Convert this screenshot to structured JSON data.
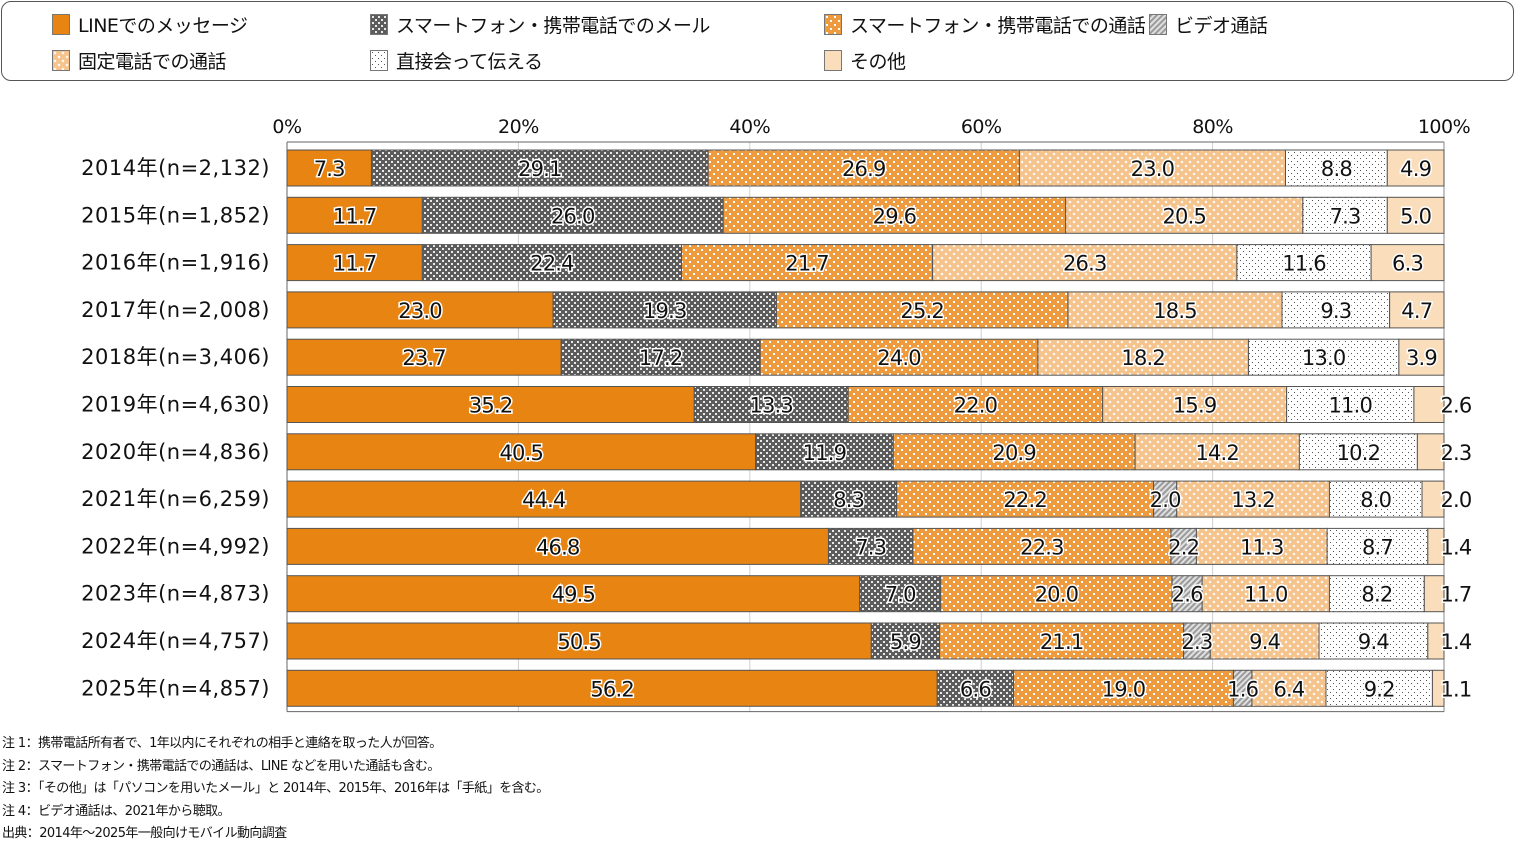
{
  "chart_data": {
    "type": "bar",
    "orientation": "horizontal",
    "stacked": true,
    "title": "",
    "xlabel": "",
    "ylabel": "",
    "xlim": [
      0,
      100
    ],
    "x_ticks": [
      "0%",
      "20%",
      "40%",
      "60%",
      "80%",
      "100%"
    ],
    "grid": true,
    "legend_position": "top",
    "categories": [
      "2014年(n=2,132)",
      "2015年(n=1,852)",
      "2016年(n=1,916)",
      "2017年(n=2,008)",
      "2018年(n=3,406)",
      "2019年(n=4,630)",
      "2020年(n=4,836)",
      "2021年(n=6,259)",
      "2022年(n=4,992)",
      "2023年(n=4,873)",
      "2024年(n=4,757)",
      "2025年(n=4,857)"
    ],
    "series": [
      {
        "name": "LINEでのメッセージ",
        "color": "#E88411",
        "pattern": "solid",
        "values": [
          7.3,
          11.7,
          11.7,
          23.0,
          23.7,
          35.2,
          40.5,
          44.4,
          46.8,
          49.5,
          50.5,
          56.2
        ]
      },
      {
        "name": "スマートフォン・携帯電話でのメール",
        "color": "#5a5a5a",
        "pattern": "crosshatch",
        "values": [
          29.1,
          26.0,
          22.4,
          19.3,
          17.2,
          13.3,
          11.9,
          8.3,
          7.3,
          7.0,
          5.9,
          6.6
        ]
      },
      {
        "name": "スマートフォン・携帯電話での通話",
        "color": "#EE9B3F",
        "pattern": "dots",
        "values": [
          26.9,
          29.6,
          21.7,
          25.2,
          24.0,
          22.0,
          20.9,
          22.2,
          22.3,
          20.0,
          21.1,
          19.0
        ]
      },
      {
        "name": "ビデオ通話",
        "color": "#bdbdbd",
        "pattern": "diagonal",
        "values": [
          null,
          null,
          null,
          null,
          null,
          null,
          null,
          2.0,
          2.2,
          2.6,
          2.3,
          1.6
        ]
      },
      {
        "name": "固定電話での通話",
        "color": "#F5C38C",
        "pattern": "diamonds",
        "values": [
          23.0,
          20.5,
          26.3,
          18.5,
          18.2,
          15.9,
          14.2,
          13.2,
          11.3,
          11.0,
          9.4,
          6.4
        ]
      },
      {
        "name": "直接会って伝える",
        "color": "#ffffff",
        "pattern": "finedots",
        "values": [
          8.8,
          7.3,
          11.6,
          9.3,
          13.0,
          11.0,
          10.2,
          8.0,
          8.7,
          8.2,
          9.4,
          9.2
        ]
      },
      {
        "name": "その他",
        "color": "#FADDBA",
        "pattern": "solid",
        "values": [
          4.9,
          5.0,
          6.3,
          4.7,
          3.9,
          2.6,
          2.3,
          2.0,
          1.4,
          1.7,
          1.4,
          1.1
        ]
      }
    ]
  },
  "legend": {
    "items": [
      {
        "label": "LINEでのメッセージ",
        "pattern": "solid-orange"
      },
      {
        "label": "スマートフォン・携帯電話でのメール",
        "pattern": "crosshatch-gray"
      },
      {
        "label": "スマートフォン・携帯電話での通話",
        "pattern": "dots-orange"
      },
      {
        "label": "ビデオ通話",
        "pattern": "diagonal-gray"
      },
      {
        "label": "固定電話での通話",
        "pattern": "diamonds-light-orange"
      },
      {
        "label": "直接会って伝える",
        "pattern": "finedots-white"
      },
      {
        "label": "その他",
        "pattern": "solid-peach"
      }
    ]
  },
  "notes": [
    "注 1：携帯電話所有者で、1年以内にそれぞれの相手と連絡を取った人が回答。",
    "注 2：スマートフォン・携帯電話での通話は、LINE などを用いた通話も含む。",
    "注 3：「その他」は「パソコンを用いたメール」と 2014年、2015年、2016年は「手紙」を含む。",
    "注 4：ビデオ通話は、2021年から聴取。",
    "出典：2014年～2025年一般向けモバイル動向調査"
  ]
}
